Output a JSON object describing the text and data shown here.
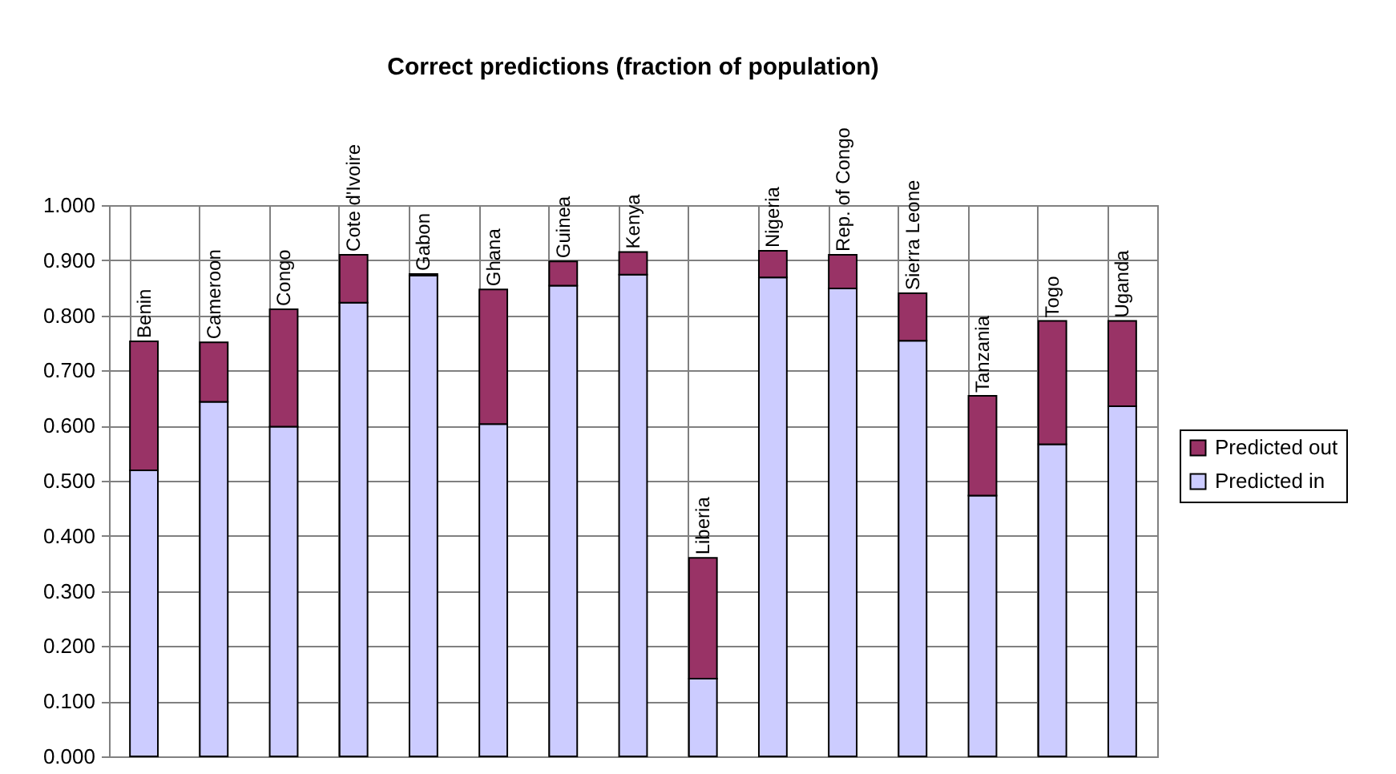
{
  "chart_data": {
    "type": "bar",
    "title": "Correct predictions (fraction of population)",
    "categories": [
      "Benin",
      "Cameroon",
      "Congo",
      "Cote d'Ivoire",
      "Gabon",
      "Ghana",
      "Guinea",
      "Kenya",
      "Liberia",
      "Nigeria",
      "Rep. of Congo",
      "Sierra Leone",
      "Tanzania",
      "Togo",
      "Uganda"
    ],
    "stacked": true,
    "series": [
      {
        "name": "Predicted in",
        "color": "#ccccff",
        "values": [
          0.519,
          0.643,
          0.598,
          0.823,
          0.872,
          0.603,
          0.854,
          0.874,
          0.141,
          0.869,
          0.849,
          0.754,
          0.473,
          0.566,
          0.635
        ]
      },
      {
        "name": "Predicted out",
        "color": "#993366",
        "values": [
          0.234,
          0.108,
          0.213,
          0.087,
          0.003,
          0.244,
          0.044,
          0.041,
          0.219,
          0.048,
          0.061,
          0.086,
          0.181,
          0.224,
          0.155
        ]
      }
    ],
    "ylim": [
      0,
      1
    ],
    "yticks": [
      {
        "value": 0,
        "label": "0.000"
      },
      {
        "value": 0.1,
        "label": "0.100"
      },
      {
        "value": 0.2,
        "label": "0.200"
      },
      {
        "value": 0.3,
        "label": "0.300"
      },
      {
        "value": 0.4,
        "label": "0.400"
      },
      {
        "value": 0.5,
        "label": "0.500"
      },
      {
        "value": 0.6,
        "label": "0.600"
      },
      {
        "value": 0.7,
        "label": "0.700"
      },
      {
        "value": 0.8,
        "label": "0.800"
      },
      {
        "value": 0.9,
        "label": "0.900"
      },
      {
        "value": 1,
        "label": "1.000"
      }
    ],
    "grid": true,
    "legend": "right",
    "tick_labels": "y"
  }
}
